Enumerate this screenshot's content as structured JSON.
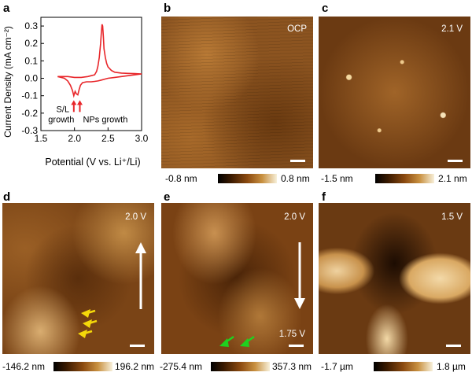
{
  "panels": {
    "a": {
      "label": "a"
    },
    "b": {
      "label": "b",
      "condition": "OCP",
      "cbar_min": "-0.8 nm",
      "cbar_max": "0.8 nm"
    },
    "c": {
      "label": "c",
      "condition": "2.1 V",
      "cbar_min": "-1.5 nm",
      "cbar_max": "2.1 nm"
    },
    "d": {
      "label": "d",
      "condition": "2.0 V",
      "cbar_min": "-146.2 nm",
      "cbar_max": "196.2 nm"
    },
    "e": {
      "label": "e",
      "condition": "2.0 V",
      "condition_end": "1.75 V",
      "cbar_min": "-275.4 nm",
      "cbar_max": "357.3 nm"
    },
    "f": {
      "label": "f",
      "condition": "1.5 V",
      "cbar_min": "-1.7 µm",
      "cbar_max": "1.8 µm"
    }
  },
  "chart_data": {
    "type": "line",
    "xlabel": "Potential (V vs. Li⁺/Li)",
    "ylabel": "Current Density (mA cm⁻²)",
    "xlim": [
      1.5,
      3.0
    ],
    "ylim": [
      -0.3,
      0.35
    ],
    "xticks": [
      "1.5",
      "2.0",
      "2.5",
      "3.0"
    ],
    "yticks": [
      "-0.3",
      "-0.2",
      "-0.1",
      "0.0",
      "0.1",
      "0.2",
      "0.3"
    ],
    "color": "#e8262a",
    "annotations": [
      {
        "text": "S/L",
        "text2": "growth",
        "x": 1.99,
        "y": -0.13
      },
      {
        "text": "NPs growth",
        "x": 2.08,
        "y": -0.13
      }
    ],
    "series": [
      {
        "x": [
          1.75,
          1.85,
          1.9,
          1.94,
          1.97,
          1.99,
          2.01,
          2.03,
          2.05,
          2.07,
          2.09,
          2.12,
          2.18,
          2.25,
          2.3,
          2.35,
          2.4,
          2.45,
          2.5,
          2.6,
          2.7,
          2.8,
          2.9,
          3.0
        ],
        "y": [
          0.01,
          0.0,
          -0.015,
          -0.04,
          -0.07,
          -0.1,
          -0.075,
          -0.09,
          -0.095,
          -0.065,
          -0.04,
          -0.025,
          -0.02,
          -0.02,
          -0.018,
          -0.015,
          -0.01,
          -0.005,
          0.0,
          0.005,
          0.01,
          0.015,
          0.02,
          0.025
        ]
      },
      {
        "x": [
          1.75,
          1.9,
          2.0,
          2.1,
          2.2,
          2.25,
          2.3,
          2.33,
          2.35,
          2.37,
          2.39,
          2.4,
          2.41,
          2.42,
          2.43,
          2.44,
          2.46,
          2.48,
          2.5,
          2.55,
          2.6,
          2.7,
          2.8,
          2.9,
          3.0
        ],
        "y": [
          0.01,
          0.01,
          0.005,
          0.005,
          0.01,
          0.015,
          0.02,
          0.04,
          0.07,
          0.12,
          0.2,
          0.26,
          0.31,
          0.3,
          0.24,
          0.17,
          0.12,
          0.085,
          0.065,
          0.045,
          0.035,
          0.03,
          0.028,
          0.027,
          0.025
        ]
      }
    ]
  }
}
